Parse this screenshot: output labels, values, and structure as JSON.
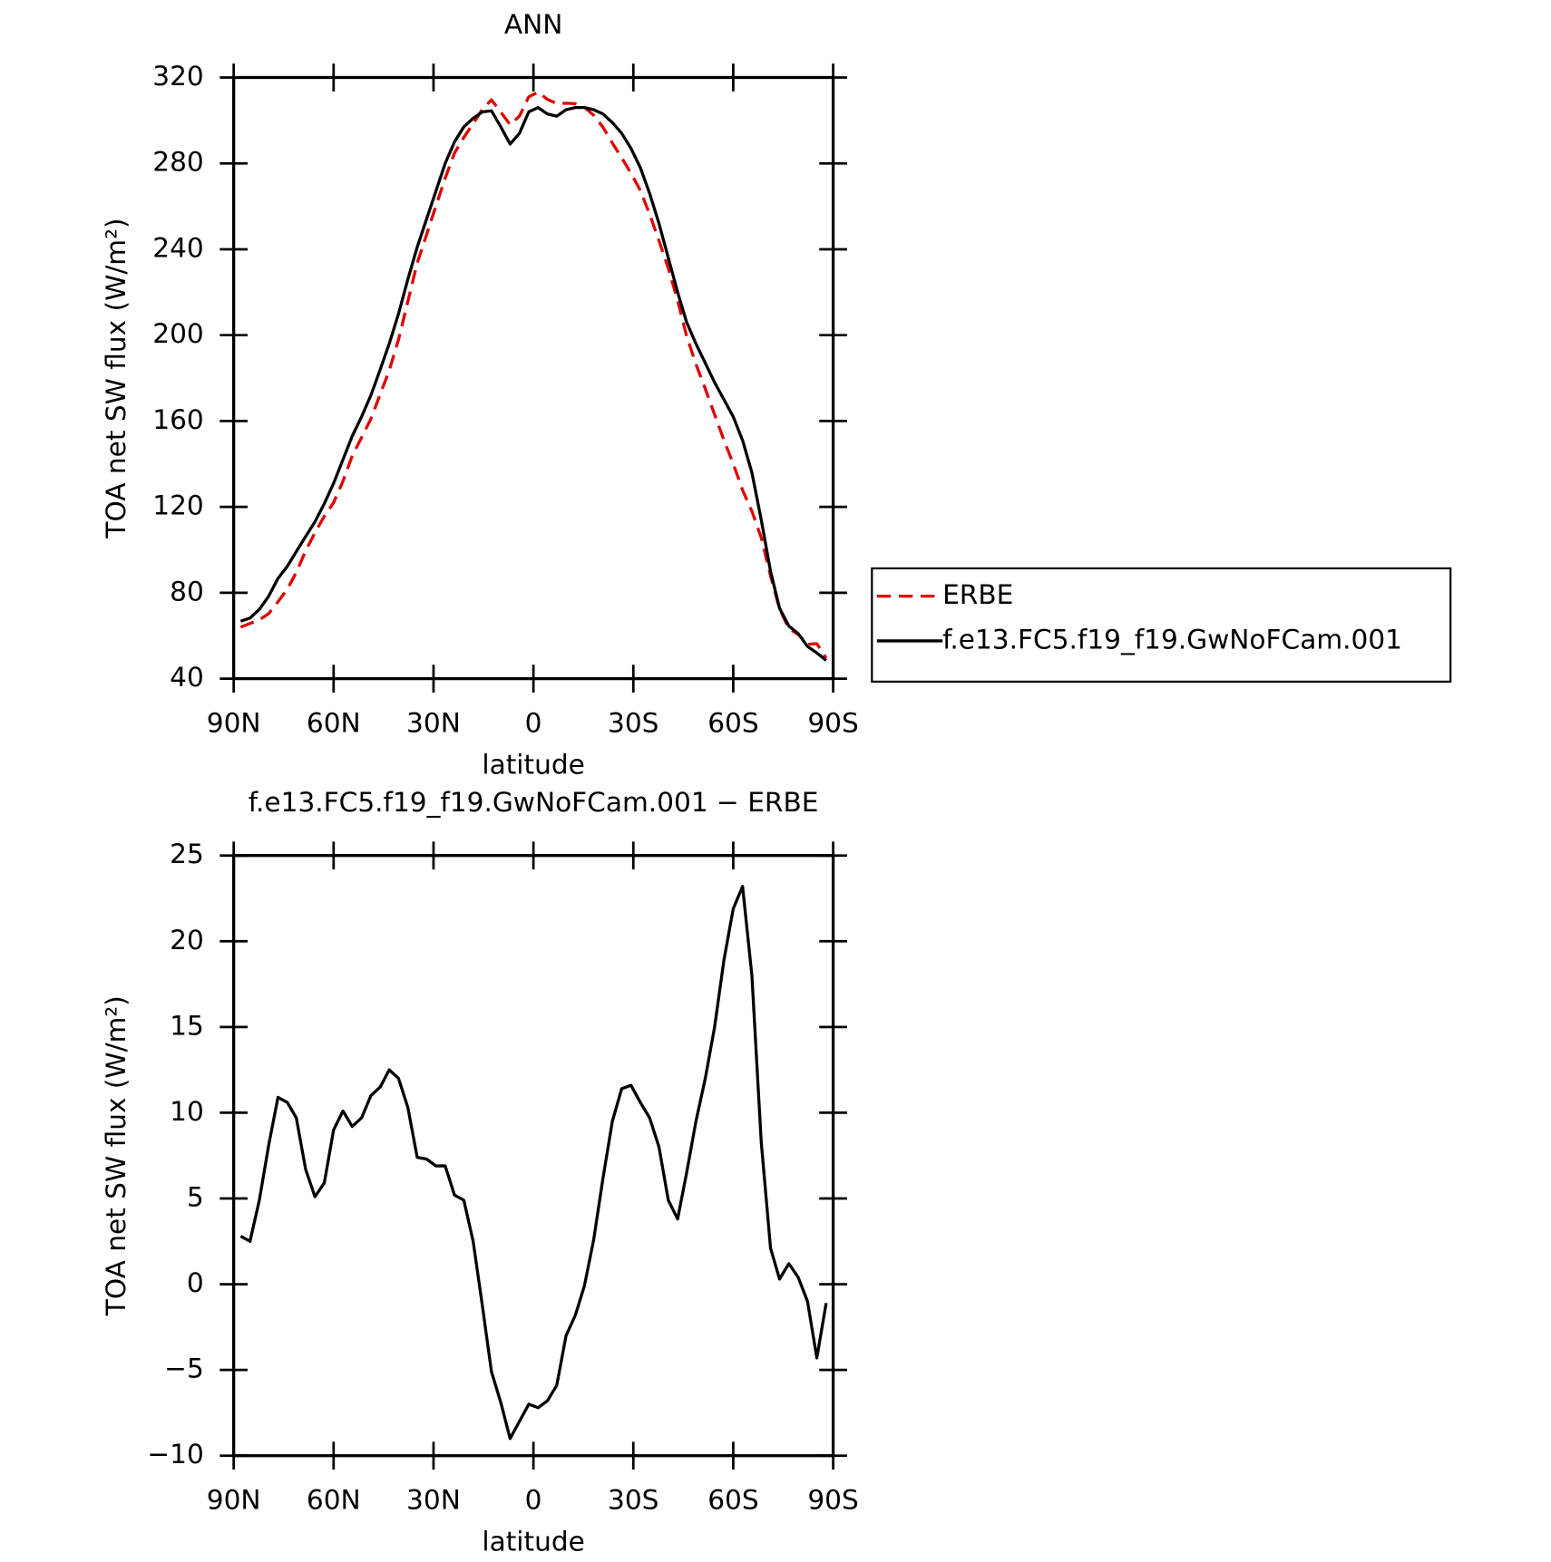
{
  "chart_data": [
    {
      "type": "line",
      "title": "ANN",
      "xlabel": "latitude",
      "ylabel": "TOA net SW flux (W/m²)",
      "legend": "right",
      "x": [
        87.9,
        85.1,
        82.3,
        79.5,
        76.7,
        73.9,
        71.2,
        68.4,
        65.6,
        62.8,
        60.0,
        57.2,
        54.4,
        51.6,
        48.8,
        46.0,
        43.3,
        40.5,
        37.7,
        34.9,
        32.1,
        29.3,
        26.5,
        23.7,
        20.9,
        18.1,
        15.3,
        12.6,
        9.8,
        7.0,
        4.2,
        1.4,
        -1.4,
        -4.2,
        -7.0,
        -9.8,
        -12.6,
        -15.3,
        -18.1,
        -20.9,
        -23.7,
        -26.5,
        -29.3,
        -32.1,
        -34.9,
        -37.7,
        -40.5,
        -43.3,
        -46.0,
        -48.8,
        -51.6,
        -54.4,
        -57.2,
        -60.0,
        -62.8,
        -65.6,
        -68.4,
        -71.2,
        -73.9,
        -76.7,
        -79.5,
        -82.3,
        -85.1,
        -87.9
      ],
      "xlim": [
        90,
        -90
      ],
      "xticks": [
        {
          "value": 90,
          "label": "90N"
        },
        {
          "value": 60,
          "label": "60N"
        },
        {
          "value": 30,
          "label": "30N"
        },
        0,
        {
          "value": -30,
          "label": "30S"
        },
        {
          "value": -60,
          "label": "60S"
        },
        {
          "value": -90,
          "label": "90S"
        }
      ],
      "ylim": [
        40,
        320
      ],
      "yticks": [
        40,
        80,
        120,
        160,
        200,
        240,
        280,
        320
      ],
      "series": [
        {
          "name": "ERBE",
          "color": "#e00000",
          "dash": true,
          "values": [
            64.0,
            65.7,
            67.4,
            70.3,
            75.8,
            81.7,
            89.5,
            99.5,
            108.0,
            115.6,
            122.0,
            131.9,
            143.8,
            152.3,
            161.0,
            172.5,
            183.5,
            198.0,
            215.7,
            233.6,
            246.7,
            260.1,
            273.1,
            284.8,
            292.1,
            298.5,
            305.3,
            309.6,
            303.9,
            298.0,
            302.0,
            311.0,
            313.2,
            309.8,
            307.9,
            308.0,
            307.8,
            306.1,
            302.4,
            296.8,
            289.5,
            282.6,
            275.4,
            267.4,
            256.3,
            244.0,
            231.1,
            216.2,
            199.5,
            186.5,
            175.0,
            163.0,
            151.1,
            140.1,
            127.8,
            118.0,
            105.7,
            87.9,
            72.5,
            63.3,
            60.6,
            56.0,
            56.3,
            49.6
          ]
        },
        {
          "name": "f.e13.FC5.f19_f19.GwNoFCam.001",
          "color": "#000000",
          "dash": false,
          "values": [
            66.8,
            68.2,
            72.3,
            78.4,
            86.7,
            92.3,
            99.2,
            106.2,
            113.1,
            121.5,
            131,
            142,
            153,
            162,
            172,
            184,
            196,
            210,
            226,
            241,
            254,
            267,
            280,
            290,
            297,
            301,
            304,
            304.5,
            297,
            289,
            294,
            304,
            306,
            303,
            302,
            305,
            306,
            306,
            305,
            303,
            299,
            294,
            287,
            278,
            266,
            252,
            236,
            220,
            206,
            196,
            187,
            178,
            170,
            162,
            151,
            136,
            114,
            90,
            72.8,
            64.5,
            61,
            55,
            52,
            48.5
          ]
        }
      ]
    },
    {
      "type": "line",
      "title": "f.e13.FC5.f19_f19.GwNoFCam.001 − ERBE",
      "xlabel": "latitude",
      "ylabel": "TOA net SW flux (W/m²)",
      "x": [
        87.9,
        85.1,
        82.3,
        79.5,
        76.7,
        73.9,
        71.2,
        68.4,
        65.6,
        62.8,
        60.0,
        57.2,
        54.4,
        51.6,
        48.8,
        46.0,
        43.3,
        40.5,
        37.7,
        34.9,
        32.1,
        29.3,
        26.5,
        23.7,
        20.9,
        18.1,
        15.3,
        12.6,
        9.8,
        7.0,
        4.2,
        1.4,
        -1.4,
        -4.2,
        -7.0,
        -9.8,
        -12.6,
        -15.3,
        -18.1,
        -20.9,
        -23.7,
        -26.5,
        -29.3,
        -32.1,
        -34.9,
        -37.7,
        -40.5,
        -43.3,
        -46.0,
        -48.8,
        -51.6,
        -54.4,
        -57.2,
        -60.0,
        -62.8,
        -65.6,
        -68.4,
        -71.2,
        -73.9,
        -76.7,
        -79.5,
        -82.3,
        -85.1,
        -87.9
      ],
      "xlim": [
        90,
        -90
      ],
      "xticks": [
        {
          "value": 90,
          "label": "90N"
        },
        {
          "value": 60,
          "label": "60N"
        },
        {
          "value": 30,
          "label": "30N"
        },
        0,
        {
          "value": -30,
          "label": "30S"
        },
        {
          "value": -60,
          "label": "60S"
        },
        {
          "value": -90,
          "label": "90S"
        }
      ],
      "ylim": [
        -10,
        25
      ],
      "yticks": [
        {
          "value": -10,
          "label": "−10"
        },
        {
          "value": -5,
          "label": "−5"
        },
        0,
        5,
        10,
        15,
        20,
        25
      ],
      "series": [
        {
          "color": "#000000",
          "dash": false,
          "values": [
            2.8,
            2.5,
            4.9,
            8.1,
            10.9,
            10.6,
            9.7,
            6.7,
            5.1,
            5.9,
            9.0,
            10.1,
            9.2,
            9.7,
            11.0,
            11.5,
            12.5,
            12.0,
            10.3,
            7.4,
            7.3,
            6.9,
            6.9,
            5.2,
            4.9,
            2.5,
            -1.3,
            -5.1,
            -6.9,
            -9.0,
            -8.0,
            -7.0,
            -7.2,
            -6.8,
            -5.9,
            -3.0,
            -1.8,
            -0.1,
            2.6,
            6.2,
            9.5,
            11.4,
            11.6,
            10.6,
            9.7,
            8.0,
            4.9,
            3.8,
            6.5,
            9.5,
            12.0,
            15.0,
            18.9,
            21.9,
            23.2,
            18.0,
            8.3,
            2.1,
            0.3,
            1.2,
            0.4,
            -1.0,
            -4.3,
            -1.1
          ]
        }
      ]
    }
  ]
}
